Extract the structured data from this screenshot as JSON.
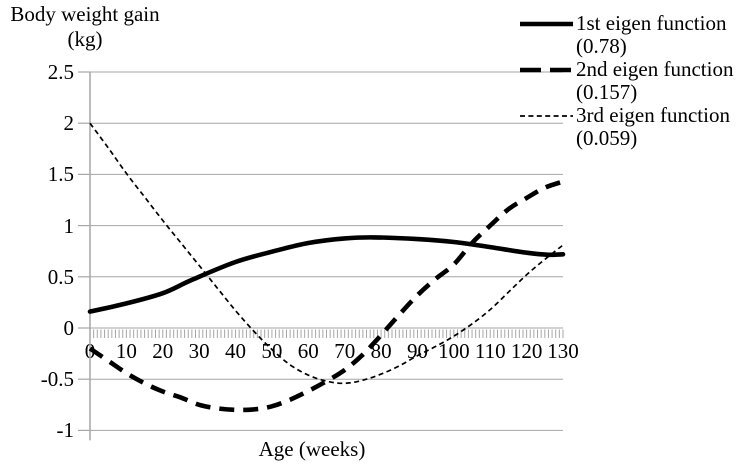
{
  "chart_data": {
    "type": "line",
    "y_axis_title_line1": "Body weight gain",
    "y_axis_title_line2": "(kg)",
    "x_axis_title": "Age (weeks)",
    "xlim": [
      0,
      130
    ],
    "ylim": [
      -1,
      2.5
    ],
    "x_ticks": [
      0,
      10,
      20,
      30,
      40,
      50,
      60,
      70,
      80,
      90,
      100,
      110,
      120,
      130
    ],
    "y_ticks": [
      2.5,
      2,
      1.5,
      1,
      0.5,
      0,
      -0.5,
      -1
    ],
    "x_minor_tick_interval": 1,
    "grid": true,
    "legend_position": "top-right",
    "series": [
      {
        "name": "1st eigen function",
        "value_label": "(0.78)",
        "style": "solid-thick",
        "points": [
          [
            0,
            0.16
          ],
          [
            10,
            0.24
          ],
          [
            20,
            0.34
          ],
          [
            28,
            0.47
          ],
          [
            40,
            0.645
          ],
          [
            50,
            0.745
          ],
          [
            60,
            0.83
          ],
          [
            70,
            0.875
          ],
          [
            78,
            0.885
          ],
          [
            90,
            0.868
          ],
          [
            100,
            0.84
          ],
          [
            110,
            0.79
          ],
          [
            120,
            0.735
          ],
          [
            126,
            0.715
          ],
          [
            130,
            0.72
          ]
        ]
      },
      {
        "name": "2nd eigen function",
        "value_label": "(0.157)",
        "style": "dashed-thick",
        "points": [
          [
            0,
            -0.2
          ],
          [
            5,
            -0.32
          ],
          [
            10,
            -0.44
          ],
          [
            15,
            -0.54
          ],
          [
            20,
            -0.62
          ],
          [
            25,
            -0.68
          ],
          [
            30,
            -0.75
          ],
          [
            35,
            -0.785
          ],
          [
            40,
            -0.8
          ],
          [
            45,
            -0.795
          ],
          [
            50,
            -0.765
          ],
          [
            55,
            -0.7
          ],
          [
            60,
            -0.615
          ],
          [
            65,
            -0.52
          ],
          [
            70,
            -0.41
          ],
          [
            75,
            -0.26
          ],
          [
            80,
            -0.07
          ],
          [
            85,
            0.13
          ],
          [
            90,
            0.32
          ],
          [
            95,
            0.48
          ],
          [
            100,
            0.62
          ],
          [
            105,
            0.83
          ],
          [
            110,
            1.0
          ],
          [
            115,
            1.16
          ],
          [
            120,
            1.27
          ],
          [
            125,
            1.37
          ],
          [
            130,
            1.43
          ]
        ]
      },
      {
        "name": "3rd eigen function",
        "value_label": "(0.059)",
        "style": "dashed-thin",
        "points": [
          [
            0,
            2.0
          ],
          [
            5,
            1.76
          ],
          [
            10,
            1.51
          ],
          [
            15,
            1.28
          ],
          [
            20,
            1.05
          ],
          [
            25,
            0.83
          ],
          [
            30,
            0.61
          ],
          [
            35,
            0.39
          ],
          [
            40,
            0.17
          ],
          [
            45,
            -0.03
          ],
          [
            50,
            -0.21
          ],
          [
            55,
            -0.36
          ],
          [
            60,
            -0.46
          ],
          [
            65,
            -0.52
          ],
          [
            70,
            -0.54
          ],
          [
            75,
            -0.51
          ],
          [
            80,
            -0.45
          ],
          [
            85,
            -0.37
          ],
          [
            90,
            -0.27
          ],
          [
            95,
            -0.18
          ],
          [
            100,
            -0.08
          ],
          [
            105,
            0.04
          ],
          [
            110,
            0.18
          ],
          [
            115,
            0.35
          ],
          [
            120,
            0.52
          ],
          [
            125,
            0.67
          ],
          [
            130,
            0.81
          ]
        ]
      }
    ]
  },
  "colors": {
    "line": "#000000",
    "grid": "#a6a6a6",
    "text": "#000000",
    "background": "#ffffff"
  }
}
